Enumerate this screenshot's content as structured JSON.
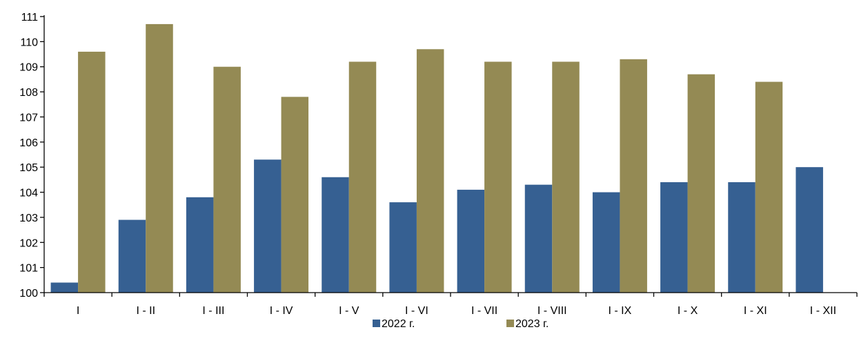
{
  "chart_data": {
    "type": "bar",
    "title": "",
    "xlabel": "",
    "ylabel": "",
    "categories": [
      "I",
      "I - II",
      "I - III",
      "I - IV",
      "I - V",
      "I - VI",
      "I - VII",
      "I - VIII",
      "I - IX",
      "I - X",
      "I - XI",
      "I - XII"
    ],
    "series": [
      {
        "name": "2022 г.",
        "color": "#366092",
        "values": [
          100.4,
          102.9,
          103.8,
          105.3,
          104.6,
          103.6,
          104.1,
          104.3,
          104.0,
          104.4,
          104.4,
          105.0
        ]
      },
      {
        "name": "2023 г.",
        "color": "#948A54",
        "values": [
          109.6,
          110.7,
          109.0,
          107.8,
          109.2,
          109.7,
          109.2,
          109.2,
          109.3,
          108.7,
          108.4,
          null
        ]
      }
    ],
    "ylim": [
      100,
      111
    ],
    "yticks": [
      100,
      101,
      102,
      103,
      104,
      105,
      106,
      107,
      108,
      109,
      110,
      111
    ],
    "grid": false,
    "legend_position": "bottom"
  }
}
